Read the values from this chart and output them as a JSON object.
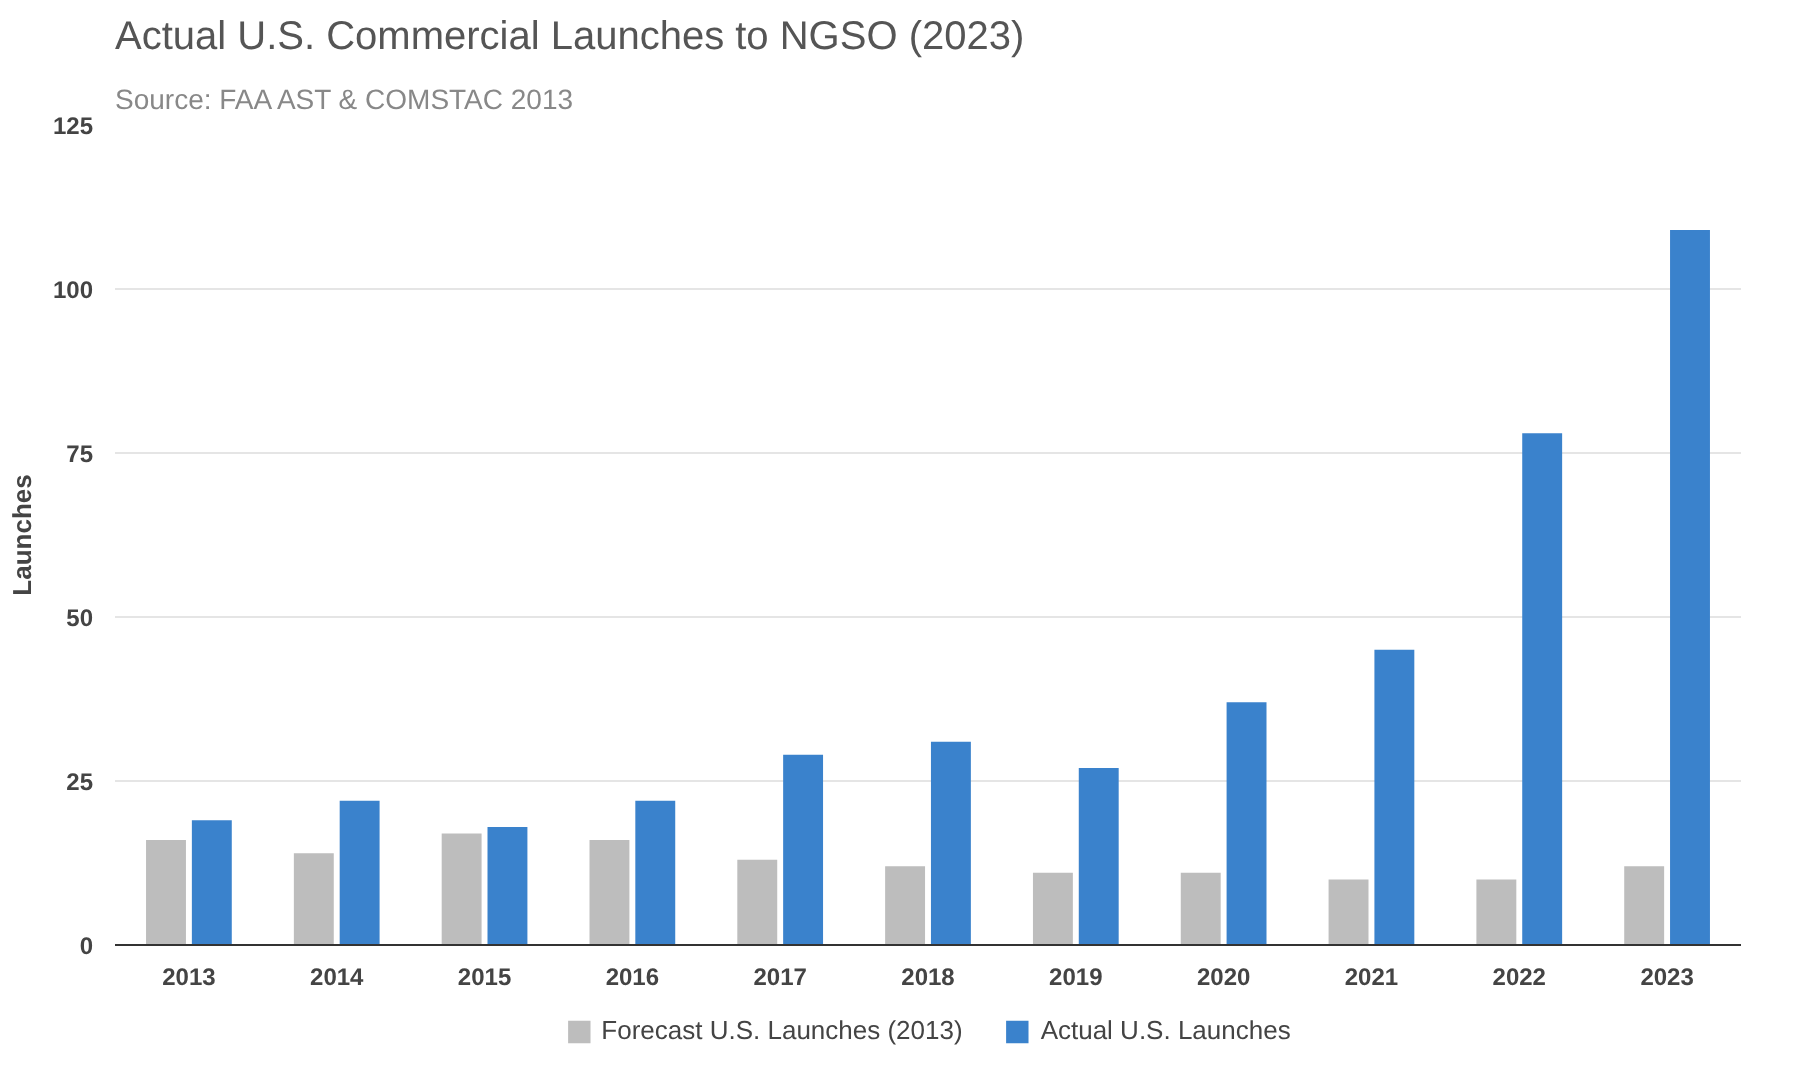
{
  "chart_data": {
    "type": "bar",
    "title": "Actual U.S. Commercial Launches to NGSO (2023)",
    "subtitle": "Source: FAA AST & COMSTAC 2013",
    "ylabel": "Launches",
    "categories": [
      "2013",
      "2014",
      "2015",
      "2016",
      "2017",
      "2018",
      "2019",
      "2020",
      "2021",
      "2022",
      "2023"
    ],
    "series": [
      {
        "name": "Forecast U.S. Launches (2013)",
        "color": "#bdbdbd",
        "values": [
          16,
          14,
          17,
          16,
          13,
          12,
          11,
          11,
          10,
          10,
          12
        ]
      },
      {
        "name": "Actual U.S. Launches",
        "color": "#3a82cc",
        "values": [
          19,
          22,
          18,
          22,
          29,
          31,
          27,
          37,
          45,
          78,
          109
        ]
      }
    ],
    "ylim": [
      0,
      125
    ],
    "yticks": [
      0,
      25,
      50,
      75,
      100,
      125
    ],
    "grid": "y",
    "legend": "bottom"
  }
}
